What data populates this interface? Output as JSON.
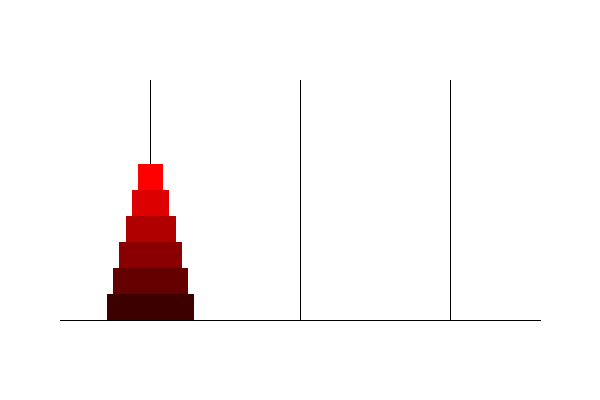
{
  "game": {
    "type": "tower-of-hanoi",
    "peg_count": 3,
    "disk_count": 6,
    "pegs": [
      {
        "id": "A",
        "disks": [
          6,
          5,
          4,
          3,
          2,
          1
        ]
      },
      {
        "id": "B",
        "disks": []
      },
      {
        "id": "C",
        "disks": []
      }
    ],
    "colors": {
      "background": "#ffffff",
      "peg": "#000000",
      "base": "#000000",
      "disks": {
        "1": "#ff0000",
        "2": "#dd0000",
        "3": "#b00000",
        "4": "#8a0000",
        "5": "#640000",
        "6": "#3c0000"
      }
    }
  }
}
